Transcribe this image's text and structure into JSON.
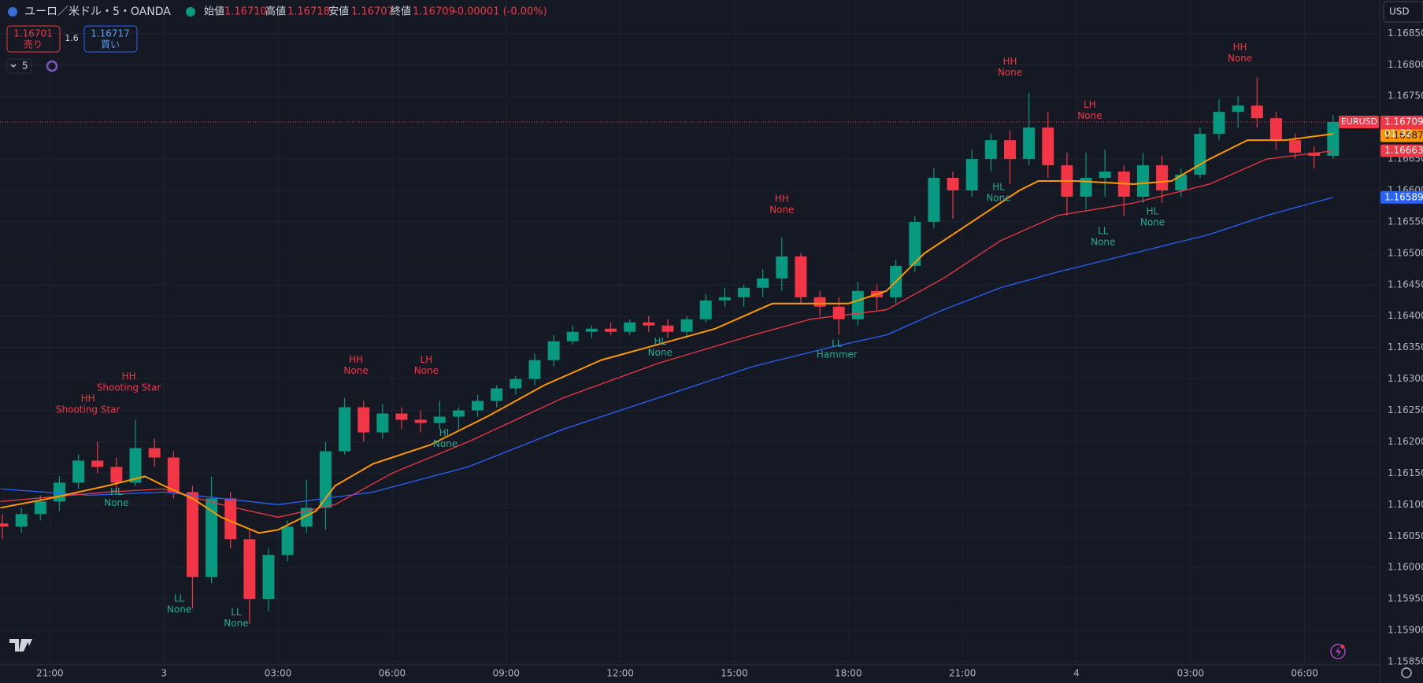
{
  "header": {
    "symbol": "ユーロ／米ドル・5・OANDA",
    "open_label": "始値",
    "open": "1.16710",
    "high_label": "高値",
    "high": "1.16718",
    "low_label": "安値",
    "low": "1.16707",
    "close_label": "終値",
    "close": "1.16709",
    "change": "-0.00001 (-0.00%)"
  },
  "trade": {
    "sell_price": "1.16701",
    "sell_label": "売り",
    "spread": "1.6",
    "buy_price": "1.16717",
    "buy_label": "買い",
    "interval": "5",
    "currency": "USD"
  },
  "chart_data": {
    "type": "candlestick",
    "up_color": "#089981",
    "down_color": "#f23645",
    "grid": true,
    "xlim": [
      0.374,
      72.95
    ],
    "ylim": [
      1.15845,
      1.16903
    ],
    "xticks": [
      {
        "value": 3,
        "label": "21:00"
      },
      {
        "value": 9,
        "label": "3"
      },
      {
        "value": 15,
        "label": "03:00"
      },
      {
        "value": 21,
        "label": "06:00"
      },
      {
        "value": 27,
        "label": "09:00"
      },
      {
        "value": 33,
        "label": "12:00"
      },
      {
        "value": 39,
        "label": "15:00"
      },
      {
        "value": 45,
        "label": "18:00"
      },
      {
        "value": 51,
        "label": "21:00"
      },
      {
        "value": 57,
        "label": "4"
      },
      {
        "value": 63,
        "label": "03:00"
      },
      {
        "value": 69,
        "label": "06:00"
      }
    ],
    "yticks": [
      {
        "value": 1.1585,
        "label": "1.15850"
      },
      {
        "value": 1.159,
        "label": "1.15900"
      },
      {
        "value": 1.1595,
        "label": "1.15950"
      },
      {
        "value": 1.16,
        "label": "1.16000"
      },
      {
        "value": 1.1605,
        "label": "1.16050"
      },
      {
        "value": 1.161,
        "label": "1.16100"
      },
      {
        "value": 1.1615,
        "label": "1.16150"
      },
      {
        "value": 1.162,
        "label": "1.16200"
      },
      {
        "value": 1.1625,
        "label": "1.16250"
      },
      {
        "value": 1.163,
        "label": "1.16300"
      },
      {
        "value": 1.1635,
        "label": "1.16350"
      },
      {
        "value": 1.164,
        "label": "1.16400"
      },
      {
        "value": 1.1645,
        "label": "1.16450"
      },
      {
        "value": 1.165,
        "label": "1.16500"
      },
      {
        "value": 1.1655,
        "label": "1.16550"
      },
      {
        "value": 1.166,
        "label": "1.16600"
      },
      {
        "value": 1.1665,
        "label": "1.16650"
      },
      {
        "value": 1.167,
        "label": "1.16700"
      },
      {
        "value": 1.1675,
        "label": "1.16750"
      },
      {
        "value": 1.168,
        "label": "1.16800"
      },
      {
        "value": 1.1685,
        "label": "1.16850"
      }
    ],
    "candles": [
      [
        1.1607,
        1.16085,
        1.16045,
        1.16065
      ],
      [
        1.16065,
        1.16095,
        1.16055,
        1.16085
      ],
      [
        1.16085,
        1.16115,
        1.16075,
        1.16105
      ],
      [
        1.16105,
        1.16145,
        1.1609,
        1.16135
      ],
      [
        1.16135,
        1.1618,
        1.16125,
        1.1617
      ],
      [
        1.1617,
        1.162,
        1.1615,
        1.1616
      ],
      [
        1.1616,
        1.16175,
        1.1612,
        1.16135
      ],
      [
        1.16135,
        1.16235,
        1.1613,
        1.1619
      ],
      [
        1.1619,
        1.16205,
        1.1616,
        1.16175
      ],
      [
        1.16175,
        1.16185,
        1.1611,
        1.1612
      ],
      [
        1.1612,
        1.1613,
        1.15935,
        1.15985
      ],
      [
        1.15985,
        1.16145,
        1.15975,
        1.1611
      ],
      [
        1.1611,
        1.1612,
        1.1603,
        1.16045
      ],
      [
        1.16045,
        1.1606,
        1.1591,
        1.1595
      ],
      [
        1.1595,
        1.1603,
        1.1593,
        1.1602
      ],
      [
        1.1602,
        1.16075,
        1.1601,
        1.16065
      ],
      [
        1.16065,
        1.1614,
        1.16055,
        1.16095
      ],
      [
        1.16095,
        1.162,
        1.1606,
        1.16185
      ],
      [
        1.16185,
        1.1627,
        1.1618,
        1.16255
      ],
      [
        1.16255,
        1.16265,
        1.162,
        1.16215
      ],
      [
        1.16215,
        1.1626,
        1.16205,
        1.16245
      ],
      [
        1.16245,
        1.16255,
        1.1622,
        1.16235
      ],
      [
        1.16235,
        1.1625,
        1.16215,
        1.1623
      ],
      [
        1.1623,
        1.16265,
        1.1622,
        1.1624
      ],
      [
        1.1624,
        1.16255,
        1.1622,
        1.1625
      ],
      [
        1.1625,
        1.16275,
        1.1624,
        1.16265
      ],
      [
        1.16265,
        1.1629,
        1.16255,
        1.16285
      ],
      [
        1.16285,
        1.16305,
        1.16275,
        1.163
      ],
      [
        1.163,
        1.1634,
        1.1629,
        1.1633
      ],
      [
        1.1633,
        1.1637,
        1.1632,
        1.1636
      ],
      [
        1.1636,
        1.16385,
        1.16355,
        1.16375
      ],
      [
        1.16375,
        1.16385,
        1.16365,
        1.1638
      ],
      [
        1.1638,
        1.1639,
        1.1637,
        1.16375
      ],
      [
        1.16375,
        1.16395,
        1.1637,
        1.1639
      ],
      [
        1.1639,
        1.164,
        1.16375,
        1.16385
      ],
      [
        1.16385,
        1.16395,
        1.16365,
        1.16375
      ],
      [
        1.16375,
        1.164,
        1.16365,
        1.16395
      ],
      [
        1.16395,
        1.16435,
        1.1639,
        1.16425
      ],
      [
        1.16425,
        1.16445,
        1.16415,
        1.1643
      ],
      [
        1.1643,
        1.1645,
        1.16415,
        1.16445
      ],
      [
        1.16445,
        1.16475,
        1.1643,
        1.1646
      ],
      [
        1.1646,
        1.16525,
        1.1644,
        1.16495
      ],
      [
        1.16495,
        1.165,
        1.1642,
        1.1643
      ],
      [
        1.1643,
        1.1644,
        1.164,
        1.16415
      ],
      [
        1.16415,
        1.1643,
        1.1637,
        1.16395
      ],
      [
        1.16395,
        1.16455,
        1.16385,
        1.1644
      ],
      [
        1.1644,
        1.1645,
        1.1641,
        1.1643
      ],
      [
        1.1643,
        1.1649,
        1.1642,
        1.1648
      ],
      [
        1.1648,
        1.1656,
        1.1647,
        1.1655
      ],
      [
        1.1655,
        1.16635,
        1.1654,
        1.1662
      ],
      [
        1.1662,
        1.1663,
        1.16555,
        1.166
      ],
      [
        1.166,
        1.16665,
        1.1659,
        1.1665
      ],
      [
        1.1665,
        1.1669,
        1.1663,
        1.1668
      ],
      [
        1.1668,
        1.16695,
        1.1661,
        1.1665
      ],
      [
        1.1665,
        1.16755,
        1.1664,
        1.167
      ],
      [
        1.167,
        1.16725,
        1.1662,
        1.1664
      ],
      [
        1.1664,
        1.1666,
        1.1656,
        1.1659
      ],
      [
        1.1659,
        1.1666,
        1.1657,
        1.1662
      ],
      [
        1.1662,
        1.16665,
        1.1659,
        1.1663
      ],
      [
        1.1663,
        1.1664,
        1.1656,
        1.1659
      ],
      [
        1.1659,
        1.1666,
        1.1658,
        1.1664
      ],
      [
        1.1664,
        1.16655,
        1.1658,
        1.166
      ],
      [
        1.166,
        1.16635,
        1.1659,
        1.16625
      ],
      [
        1.16625,
        1.167,
        1.1662,
        1.1669
      ],
      [
        1.1669,
        1.16745,
        1.1668,
        1.16725
      ],
      [
        1.16725,
        1.1675,
        1.167,
        1.16735
      ],
      [
        1.16735,
        1.1678,
        1.167,
        1.16715
      ],
      [
        1.16715,
        1.16725,
        1.16665,
        1.1668
      ],
      [
        1.1668,
        1.1669,
        1.1665,
        1.1666
      ],
      [
        1.1666,
        1.1667,
        1.16635,
        1.16655
      ],
      [
        1.16655,
        1.1672,
        1.1665,
        1.16709
      ]
    ],
    "series": [
      {
        "color": "#2962ff",
        "width": 1.3,
        "x": [
          0.4,
          5,
          9,
          12,
          15,
          20,
          25,
          30,
          35,
          40,
          44,
          47,
          50,
          53,
          56,
          60,
          64,
          67,
          70.5
        ],
        "values": [
          1.16125,
          1.16115,
          1.1612,
          1.1611,
          1.161,
          1.1612,
          1.1616,
          1.1622,
          1.1627,
          1.1632,
          1.1635,
          1.1637,
          1.1641,
          1.16445,
          1.1647,
          1.165,
          1.1653,
          1.1656,
          1.16589
        ]
      },
      {
        "color": "#f23645",
        "width": 1.3,
        "x": [
          0.4,
          6,
          9,
          12,
          15,
          18,
          21,
          25,
          30,
          35,
          40,
          43,
          47,
          50,
          53,
          56,
          60,
          64,
          67,
          70.5
        ],
        "values": [
          1.16105,
          1.1612,
          1.16125,
          1.161,
          1.1608,
          1.161,
          1.1615,
          1.162,
          1.1627,
          1.16325,
          1.1637,
          1.16395,
          1.1641,
          1.1646,
          1.1652,
          1.1656,
          1.1658,
          1.1661,
          1.1665,
          1.16663
        ]
      },
      {
        "color": "#ff9800",
        "width": 2,
        "x": [
          0.4,
          3,
          6,
          8,
          9,
          10.5,
          12,
          14,
          15,
          17,
          18,
          20,
          23,
          26,
          29,
          32,
          35,
          38,
          41,
          43,
          45,
          47,
          49,
          52,
          54,
          55,
          57,
          60,
          62,
          64,
          66,
          68,
          70.5
        ],
        "values": [
          1.16095,
          1.1611,
          1.1613,
          1.16145,
          1.1613,
          1.1611,
          1.1608,
          1.16055,
          1.1606,
          1.1609,
          1.1613,
          1.16165,
          1.16195,
          1.1624,
          1.1629,
          1.1633,
          1.16355,
          1.1638,
          1.1642,
          1.1642,
          1.1642,
          1.1644,
          1.165,
          1.1656,
          1.166,
          1.16615,
          1.16615,
          1.1661,
          1.16615,
          1.1665,
          1.1668,
          1.1668,
          1.1669
        ]
      }
    ],
    "annotations": [
      {
        "x": 5.0,
        "y": 1.16268,
        "color": "#f23645",
        "lines": [
          "HH",
          "Shooting Star"
        ]
      },
      {
        "x": 7.15,
        "y": 1.16303,
        "color": "#f23645",
        "lines": [
          "HH",
          "Shooting Star"
        ]
      },
      {
        "x": 6.5,
        "y": 1.1612,
        "color": "#22ab94",
        "lines": [
          "HL",
          "None"
        ]
      },
      {
        "x": 9.8,
        "y": 1.1595,
        "color": "#22ab94",
        "lines": [
          "LL",
          "None"
        ]
      },
      {
        "x": 12.8,
        "y": 1.15928,
        "color": "#22ab94",
        "lines": [
          "LL",
          "None"
        ]
      },
      {
        "x": 19.1,
        "y": 1.1633,
        "color": "#f23645",
        "lines": [
          "HH",
          "None"
        ]
      },
      {
        "x": 22.8,
        "y": 1.1633,
        "color": "#f23645",
        "lines": [
          "LH",
          "None"
        ]
      },
      {
        "x": 23.8,
        "y": 1.16214,
        "color": "#22ab94",
        "lines": [
          "HL",
          "None"
        ]
      },
      {
        "x": 35.1,
        "y": 1.16359,
        "color": "#22ab94",
        "lines": [
          "HL",
          "None"
        ]
      },
      {
        "x": 41.5,
        "y": 1.16586,
        "color": "#f23645",
        "lines": [
          "HH",
          "None"
        ]
      },
      {
        "x": 44.4,
        "y": 1.16356,
        "color": "#22ab94",
        "lines": [
          "LL",
          "Hammer"
        ]
      },
      {
        "x": 53.5,
        "y": 1.16805,
        "color": "#f23645",
        "lines": [
          "HH",
          "None"
        ]
      },
      {
        "x": 57.7,
        "y": 1.16736,
        "color": "#f23645",
        "lines": [
          "LH",
          "None"
        ]
      },
      {
        "x": 52.9,
        "y": 1.16605,
        "color": "#22ab94",
        "lines": [
          "HL",
          "None"
        ]
      },
      {
        "x": 58.4,
        "y": 1.16535,
        "color": "#22ab94",
        "lines": [
          "LL",
          "None"
        ]
      },
      {
        "x": 61.0,
        "y": 1.16566,
        "color": "#22ab94",
        "lines": [
          "HL",
          "None"
        ]
      },
      {
        "x": 65.6,
        "y": 1.16827,
        "color": "#f23645",
        "lines": [
          "HH",
          "None"
        ]
      }
    ],
    "symbol_tag": "EURUSD",
    "countdown": "01:32",
    "price_tags": [
      {
        "value": 1.16709,
        "color": "#f23645"
      },
      {
        "value": 1.16687,
        "color": "#ff9800"
      },
      {
        "value": 1.16663,
        "color": "#f23645"
      },
      {
        "value": 1.16589,
        "color": "#2962ff"
      }
    ]
  }
}
